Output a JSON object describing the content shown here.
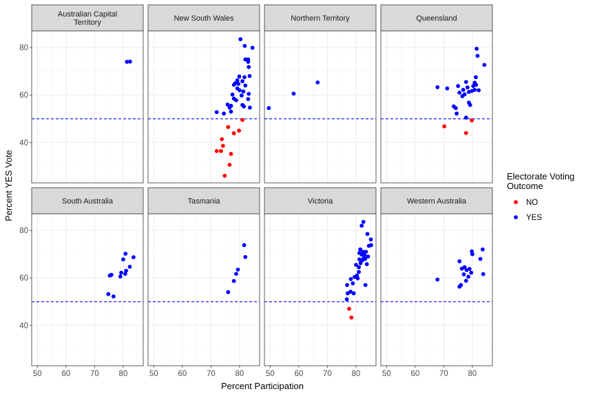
{
  "chart_data": {
    "type": "scatter",
    "facet_layout": "2x4",
    "x_label": "Percent Participation",
    "y_label": "Percent YES Vote",
    "x_range": [
      48,
      87
    ],
    "y_range": [
      23,
      87
    ],
    "x_ticks": [
      "50",
      "60",
      "70",
      "80"
    ],
    "y_ticks": [
      "40",
      "60",
      "80"
    ],
    "reference_line": {
      "y": 50,
      "style": "dashed",
      "color": "#0000ff"
    },
    "grid": true,
    "legend": {
      "title_lines": [
        "Electorate Voting",
        "Outcome"
      ],
      "placement": "right",
      "entries": [
        {
          "label": "NO",
          "color": "#ff0000"
        },
        {
          "label": "YES",
          "color": "#0000ff"
        }
      ]
    },
    "panels": [
      {
        "title_lines": [
          "Australian Capital",
          "Territory"
        ],
        "points": [
          {
            "x": 81.3,
            "y": 74.0,
            "outcome": "YES"
          },
          {
            "x": 82.4,
            "y": 74.1,
            "outcome": "YES"
          }
        ]
      },
      {
        "title_lines": [
          "New South Wales"
        ],
        "points": [
          {
            "x": 72.0,
            "y": 36.4,
            "outcome": "NO"
          },
          {
            "x": 73.5,
            "y": 36.4,
            "outcome": "NO"
          },
          {
            "x": 73.8,
            "y": 41.4,
            "outcome": "NO"
          },
          {
            "x": 74.2,
            "y": 38.6,
            "outcome": "NO"
          },
          {
            "x": 74.8,
            "y": 26.0,
            "outcome": "NO"
          },
          {
            "x": 76.0,
            "y": 46.5,
            "outcome": "NO"
          },
          {
            "x": 76.5,
            "y": 30.6,
            "outcome": "NO"
          },
          {
            "x": 77.0,
            "y": 35.2,
            "outcome": "NO"
          },
          {
            "x": 78.0,
            "y": 43.9,
            "outcome": "NO"
          },
          {
            "x": 79.8,
            "y": 45.0,
            "outcome": "NO"
          },
          {
            "x": 81.0,
            "y": 49.5,
            "outcome": "NO"
          },
          {
            "x": 72.0,
            "y": 52.8,
            "outcome": "YES"
          },
          {
            "x": 74.5,
            "y": 52.2,
            "outcome": "YES"
          },
          {
            "x": 75.8,
            "y": 56.0,
            "outcome": "YES"
          },
          {
            "x": 76.5,
            "y": 54.7,
            "outcome": "YES"
          },
          {
            "x": 77.0,
            "y": 53.0,
            "outcome": "YES"
          },
          {
            "x": 77.0,
            "y": 55.5,
            "outcome": "YES"
          },
          {
            "x": 77.5,
            "y": 60.2,
            "outcome": "YES"
          },
          {
            "x": 78.0,
            "y": 58.5,
            "outcome": "YES"
          },
          {
            "x": 78.0,
            "y": 64.3,
            "outcome": "YES"
          },
          {
            "x": 78.5,
            "y": 65.0,
            "outcome": "YES"
          },
          {
            "x": 78.8,
            "y": 57.8,
            "outcome": "YES"
          },
          {
            "x": 79.2,
            "y": 62.8,
            "outcome": "YES"
          },
          {
            "x": 79.2,
            "y": 66.2,
            "outcome": "YES"
          },
          {
            "x": 79.6,
            "y": 64.7,
            "outcome": "YES"
          },
          {
            "x": 79.9,
            "y": 67.8,
            "outcome": "YES"
          },
          {
            "x": 80.0,
            "y": 62.0,
            "outcome": "YES"
          },
          {
            "x": 80.3,
            "y": 83.5,
            "outcome": "YES"
          },
          {
            "x": 80.7,
            "y": 59.8,
            "outcome": "YES"
          },
          {
            "x": 81.0,
            "y": 55.8,
            "outcome": "YES"
          },
          {
            "x": 81.0,
            "y": 65.8,
            "outcome": "YES"
          },
          {
            "x": 81.3,
            "y": 61.5,
            "outcome": "YES"
          },
          {
            "x": 81.5,
            "y": 55.2,
            "outcome": "YES"
          },
          {
            "x": 81.7,
            "y": 67.5,
            "outcome": "YES"
          },
          {
            "x": 81.8,
            "y": 80.7,
            "outcome": "YES"
          },
          {
            "x": 82.0,
            "y": 64.0,
            "outcome": "YES"
          },
          {
            "x": 82.0,
            "y": 75.0,
            "outcome": "YES"
          },
          {
            "x": 83.0,
            "y": 75.0,
            "outcome": "YES"
          },
          {
            "x": 83.0,
            "y": 58.3,
            "outcome": "YES"
          },
          {
            "x": 83.2,
            "y": 60.5,
            "outcome": "YES"
          },
          {
            "x": 83.2,
            "y": 71.8,
            "outcome": "YES"
          },
          {
            "x": 83.5,
            "y": 68.0,
            "outcome": "YES"
          },
          {
            "x": 83.6,
            "y": 54.7,
            "outcome": "YES"
          },
          {
            "x": 84.5,
            "y": 79.9,
            "outcome": "YES"
          },
          {
            "x": 83.0,
            "y": 74.0,
            "outcome": "YES"
          }
        ]
      },
      {
        "title_lines": [
          "Northern Territory"
        ],
        "points": [
          {
            "x": 49.5,
            "y": 54.5,
            "outcome": "YES"
          },
          {
            "x": 58.2,
            "y": 60.6,
            "outcome": "YES"
          },
          {
            "x": 66.6,
            "y": 65.3,
            "outcome": "YES"
          }
        ]
      },
      {
        "title_lines": [
          "Queensland"
        ],
        "points": [
          {
            "x": 70.2,
            "y": 46.8,
            "outcome": "NO"
          },
          {
            "x": 77.8,
            "y": 44.0,
            "outcome": "NO"
          },
          {
            "x": 79.8,
            "y": 49.3,
            "outcome": "NO"
          },
          {
            "x": 67.8,
            "y": 63.3,
            "outcome": "YES"
          },
          {
            "x": 71.2,
            "y": 62.8,
            "outcome": "YES"
          },
          {
            "x": 73.5,
            "y": 55.2,
            "outcome": "YES"
          },
          {
            "x": 74.2,
            "y": 54.5,
            "outcome": "YES"
          },
          {
            "x": 74.5,
            "y": 52.2,
            "outcome": "YES"
          },
          {
            "x": 75.0,
            "y": 63.8,
            "outcome": "YES"
          },
          {
            "x": 75.5,
            "y": 61.0,
            "outcome": "YES"
          },
          {
            "x": 76.5,
            "y": 59.5,
            "outcome": "YES"
          },
          {
            "x": 76.8,
            "y": 62.2,
            "outcome": "YES"
          },
          {
            "x": 77.3,
            "y": 60.3,
            "outcome": "YES"
          },
          {
            "x": 77.8,
            "y": 65.5,
            "outcome": "YES"
          },
          {
            "x": 77.8,
            "y": 50.5,
            "outcome": "YES"
          },
          {
            "x": 78.3,
            "y": 63.2,
            "outcome": "YES"
          },
          {
            "x": 78.8,
            "y": 56.8,
            "outcome": "YES"
          },
          {
            "x": 78.8,
            "y": 61.3,
            "outcome": "YES"
          },
          {
            "x": 79.2,
            "y": 55.8,
            "outcome": "YES"
          },
          {
            "x": 79.8,
            "y": 61.7,
            "outcome": "YES"
          },
          {
            "x": 80.3,
            "y": 63.8,
            "outcome": "YES"
          },
          {
            "x": 80.8,
            "y": 62.2,
            "outcome": "YES"
          },
          {
            "x": 80.8,
            "y": 65.2,
            "outcome": "YES"
          },
          {
            "x": 81.2,
            "y": 67.5,
            "outcome": "YES"
          },
          {
            "x": 81.3,
            "y": 64.3,
            "outcome": "YES"
          },
          {
            "x": 81.5,
            "y": 79.5,
            "outcome": "YES"
          },
          {
            "x": 81.8,
            "y": 76.5,
            "outcome": "YES"
          },
          {
            "x": 82.2,
            "y": 62.0,
            "outcome": "YES"
          },
          {
            "x": 84.2,
            "y": 72.7,
            "outcome": "YES"
          }
        ]
      },
      {
        "title_lines": [
          "South Australia"
        ],
        "points": [
          {
            "x": 74.8,
            "y": 53.2,
            "outcome": "YES"
          },
          {
            "x": 75.3,
            "y": 61.0,
            "outcome": "YES"
          },
          {
            "x": 75.9,
            "y": 61.3,
            "outcome": "YES"
          },
          {
            "x": 76.6,
            "y": 52.2,
            "outcome": "YES"
          },
          {
            "x": 79.0,
            "y": 60.6,
            "outcome": "YES"
          },
          {
            "x": 79.3,
            "y": 62.2,
            "outcome": "YES"
          },
          {
            "x": 80.0,
            "y": 67.8,
            "outcome": "YES"
          },
          {
            "x": 80.7,
            "y": 61.7,
            "outcome": "YES"
          },
          {
            "x": 80.8,
            "y": 70.2,
            "outcome": "YES"
          },
          {
            "x": 81.0,
            "y": 63.0,
            "outcome": "YES"
          },
          {
            "x": 82.3,
            "y": 64.7,
            "outcome": "YES"
          },
          {
            "x": 83.6,
            "y": 68.7,
            "outcome": "YES"
          }
        ]
      },
      {
        "title_lines": [
          "Tasmania"
        ],
        "points": [
          {
            "x": 76.0,
            "y": 54.0,
            "outcome": "YES"
          },
          {
            "x": 78.0,
            "y": 58.7,
            "outcome": "YES"
          },
          {
            "x": 78.8,
            "y": 61.7,
            "outcome": "YES"
          },
          {
            "x": 79.4,
            "y": 63.5,
            "outcome": "YES"
          },
          {
            "x": 81.6,
            "y": 73.8,
            "outcome": "YES"
          },
          {
            "x": 82.0,
            "y": 68.8,
            "outcome": "YES"
          }
        ]
      },
      {
        "title_lines": [
          "Victoria"
        ],
        "points": [
          {
            "x": 77.6,
            "y": 47.0,
            "outcome": "NO"
          },
          {
            "x": 78.4,
            "y": 43.3,
            "outcome": "NO"
          },
          {
            "x": 76.8,
            "y": 51.0,
            "outcome": "YES"
          },
          {
            "x": 76.9,
            "y": 57.0,
            "outcome": "YES"
          },
          {
            "x": 77.1,
            "y": 53.5,
            "outcome": "YES"
          },
          {
            "x": 78.1,
            "y": 54.2,
            "outcome": "YES"
          },
          {
            "x": 78.2,
            "y": 59.5,
            "outcome": "YES"
          },
          {
            "x": 78.9,
            "y": 57.7,
            "outcome": "YES"
          },
          {
            "x": 79.2,
            "y": 53.5,
            "outcome": "YES"
          },
          {
            "x": 79.5,
            "y": 60.4,
            "outcome": "YES"
          },
          {
            "x": 80.0,
            "y": 65.5,
            "outcome": "YES"
          },
          {
            "x": 80.3,
            "y": 61.0,
            "outcome": "YES"
          },
          {
            "x": 80.6,
            "y": 59.8,
            "outcome": "YES"
          },
          {
            "x": 81.0,
            "y": 62.5,
            "outcome": "YES"
          },
          {
            "x": 81.0,
            "y": 64.5,
            "outcome": "YES"
          },
          {
            "x": 81.2,
            "y": 70.5,
            "outcome": "YES"
          },
          {
            "x": 81.2,
            "y": 67.8,
            "outcome": "YES"
          },
          {
            "x": 81.5,
            "y": 72.0,
            "outcome": "YES"
          },
          {
            "x": 81.6,
            "y": 66.2,
            "outcome": "YES"
          },
          {
            "x": 82.0,
            "y": 82.0,
            "outcome": "YES"
          },
          {
            "x": 82.0,
            "y": 69.8,
            "outcome": "YES"
          },
          {
            "x": 82.3,
            "y": 67.5,
            "outcome": "YES"
          },
          {
            "x": 82.5,
            "y": 71.0,
            "outcome": "YES"
          },
          {
            "x": 82.6,
            "y": 83.6,
            "outcome": "YES"
          },
          {
            "x": 82.7,
            "y": 68.3,
            "outcome": "YES"
          },
          {
            "x": 83.0,
            "y": 69.5,
            "outcome": "YES"
          },
          {
            "x": 83.2,
            "y": 68.0,
            "outcome": "YES"
          },
          {
            "x": 83.3,
            "y": 57.0,
            "outcome": "YES"
          },
          {
            "x": 83.5,
            "y": 71.0,
            "outcome": "YES"
          },
          {
            "x": 83.8,
            "y": 65.8,
            "outcome": "YES"
          },
          {
            "x": 84.0,
            "y": 78.5,
            "outcome": "YES"
          },
          {
            "x": 84.2,
            "y": 69.0,
            "outcome": "YES"
          },
          {
            "x": 84.5,
            "y": 73.5,
            "outcome": "YES"
          },
          {
            "x": 85.2,
            "y": 76.2,
            "outcome": "YES"
          },
          {
            "x": 85.3,
            "y": 73.8,
            "outcome": "YES"
          }
        ]
      },
      {
        "title_lines": [
          "Western Australia"
        ],
        "points": [
          {
            "x": 67.8,
            "y": 59.3,
            "outcome": "YES"
          },
          {
            "x": 75.5,
            "y": 67.0,
            "outcome": "YES"
          },
          {
            "x": 75.5,
            "y": 56.3,
            "outcome": "YES"
          },
          {
            "x": 76.0,
            "y": 57.0,
            "outcome": "YES"
          },
          {
            "x": 76.3,
            "y": 63.9,
            "outcome": "YES"
          },
          {
            "x": 77.0,
            "y": 61.5,
            "outcome": "YES"
          },
          {
            "x": 77.3,
            "y": 64.5,
            "outcome": "YES"
          },
          {
            "x": 77.8,
            "y": 58.8,
            "outcome": "YES"
          },
          {
            "x": 78.0,
            "y": 63.3,
            "outcome": "YES"
          },
          {
            "x": 78.6,
            "y": 60.5,
            "outcome": "YES"
          },
          {
            "x": 79.0,
            "y": 63.8,
            "outcome": "YES"
          },
          {
            "x": 79.6,
            "y": 62.2,
            "outcome": "YES"
          },
          {
            "x": 79.8,
            "y": 71.2,
            "outcome": "YES"
          },
          {
            "x": 80.0,
            "y": 70.0,
            "outcome": "YES"
          },
          {
            "x": 82.8,
            "y": 68.0,
            "outcome": "YES"
          },
          {
            "x": 83.6,
            "y": 72.0,
            "outcome": "YES"
          },
          {
            "x": 83.8,
            "y": 61.6,
            "outcome": "YES"
          }
        ]
      }
    ]
  }
}
